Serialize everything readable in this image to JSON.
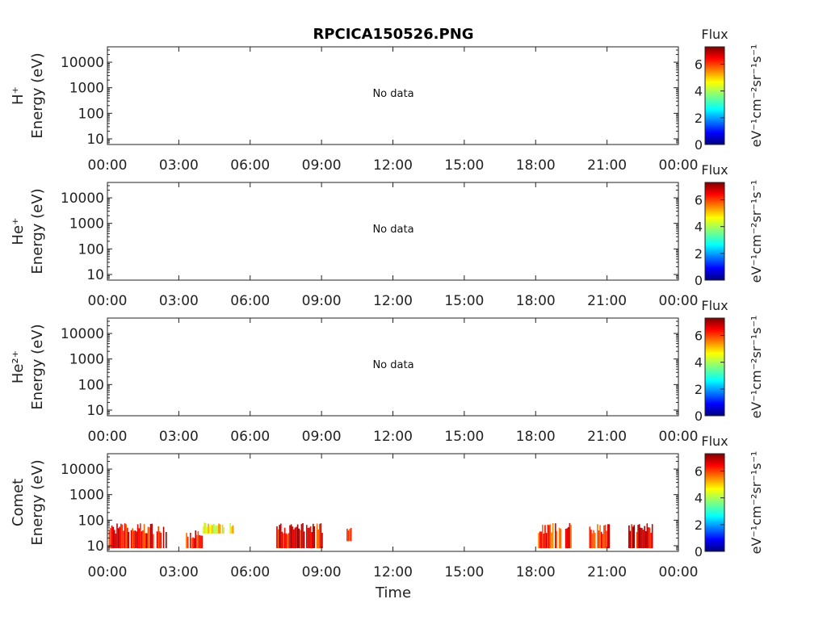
{
  "chart_data": [
    {
      "type": "heatmap",
      "title": "RPCICA150526.PNG",
      "ylabel": "Energy (eV)",
      "species": "H⁺",
      "status": "No data",
      "xlabel": "",
      "x_ticks": [
        "00:00",
        "03:00",
        "06:00",
        "09:00",
        "12:00",
        "15:00",
        "18:00",
        "21:00",
        "00:00"
      ],
      "y_scale": "log",
      "y_ticks": [
        "10",
        "100",
        "1000",
        "10000"
      ],
      "ylim": [
        6,
        40000
      ],
      "colorbar": {
        "title": "Flux",
        "label": "eV⁻¹cm⁻²sr⁻¹s⁻¹",
        "ticks": [
          "0",
          "2",
          "4",
          "6"
        ],
        "range": [
          0,
          7.3
        ]
      },
      "segments": []
    },
    {
      "type": "heatmap",
      "ylabel": "Energy (eV)",
      "species": "He⁺",
      "status": "No data",
      "xlabel": "",
      "x_ticks": [
        "00:00",
        "03:00",
        "06:00",
        "09:00",
        "12:00",
        "15:00",
        "18:00",
        "21:00",
        "00:00"
      ],
      "y_scale": "log",
      "y_ticks": [
        "10",
        "100",
        "1000",
        "10000"
      ],
      "ylim": [
        6,
        40000
      ],
      "colorbar": {
        "title": "Flux",
        "label": "eV⁻¹cm⁻²sr⁻¹s⁻¹",
        "ticks": [
          "0",
          "2",
          "4",
          "6"
        ],
        "range": [
          0,
          7.3
        ]
      },
      "segments": []
    },
    {
      "type": "heatmap",
      "ylabel": "Energy (eV)",
      "species": "He²⁺",
      "status": "No data",
      "xlabel": "",
      "x_ticks": [
        "00:00",
        "03:00",
        "06:00",
        "09:00",
        "12:00",
        "15:00",
        "18:00",
        "21:00",
        "00:00"
      ],
      "y_scale": "log",
      "y_ticks": [
        "10",
        "100",
        "1000",
        "10000"
      ],
      "ylim": [
        6,
        40000
      ],
      "colorbar": {
        "title": "Flux",
        "label": "eV⁻¹cm⁻²sr⁻¹s⁻¹",
        "ticks": [
          "0",
          "2",
          "4",
          "6"
        ],
        "range": [
          0,
          7.3
        ]
      },
      "segments": []
    },
    {
      "type": "heatmap",
      "ylabel": "Energy (eV)",
      "species": "Comet",
      "status": "",
      "xlabel": "Time",
      "x_ticks": [
        "00:00",
        "03:00",
        "06:00",
        "09:00",
        "12:00",
        "15:00",
        "18:00",
        "21:00",
        "00:00"
      ],
      "y_scale": "log",
      "y_ticks": [
        "10",
        "100",
        "1000",
        "10000"
      ],
      "ylim": [
        6,
        40000
      ],
      "colorbar": {
        "title": "Flux",
        "label": "eV⁻¹cm⁻²sr⁻¹s⁻¹",
        "ticks": [
          "0",
          "2",
          "4",
          "6"
        ],
        "range": [
          0,
          7.3
        ]
      },
      "segments": [
        {
          "start_h": 0.0,
          "end_h": 2.45,
          "e_min": 8,
          "e_max": 80,
          "flux": 6.3
        },
        {
          "start_h": 3.3,
          "end_h": 4.0,
          "e_min": 8,
          "e_max": 40,
          "flux": 6.0
        },
        {
          "start_h": 4.0,
          "end_h": 5.3,
          "e_min": 30,
          "e_max": 80,
          "flux": 4.6
        },
        {
          "start_h": 7.1,
          "end_h": 9.1,
          "e_min": 8,
          "e_max": 80,
          "flux": 6.4
        },
        {
          "start_h": 10.05,
          "end_h": 10.25,
          "e_min": 15,
          "e_max": 60,
          "flux": 5.7
        },
        {
          "start_h": 18.1,
          "end_h": 19.55,
          "e_min": 8,
          "e_max": 80,
          "flux": 6.1
        },
        {
          "start_h": 20.25,
          "end_h": 21.1,
          "e_min": 8,
          "e_max": 80,
          "flux": 6.3
        },
        {
          "start_h": 21.9,
          "end_h": 22.9,
          "e_min": 8,
          "e_max": 80,
          "flux": 6.6
        }
      ]
    }
  ]
}
